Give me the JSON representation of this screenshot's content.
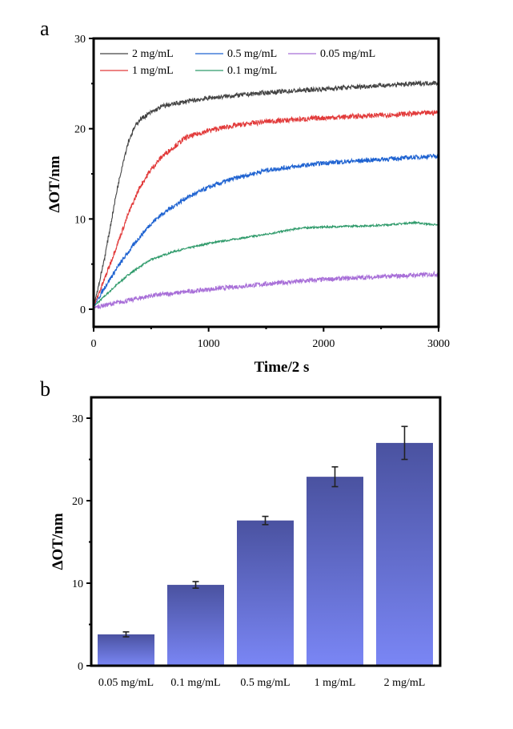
{
  "chart_data": [
    {
      "panel_label": "a",
      "type": "line",
      "xlabel": "Time/2 s",
      "ylabel": "ΔOT/nm",
      "xlim": [
        0,
        3000
      ],
      "ylim": [
        -2,
        30
      ],
      "xticks": [
        "0",
        "1000",
        "2000",
        "3000"
      ],
      "yticks": [
        "0",
        "10",
        "20",
        "30"
      ],
      "legend_position": "top-left",
      "series": [
        {
          "name": "2 mg/mL",
          "color": "#444444",
          "x": [
            0,
            50,
            100,
            150,
            200,
            250,
            300,
            350,
            400,
            500,
            600,
            800,
            1000,
            1500,
            2000,
            2500,
            3000
          ],
          "y": [
            0.3,
            3,
            6,
            9.5,
            13,
            16,
            18.5,
            20,
            21,
            21.8,
            22.5,
            23,
            23.4,
            24,
            24.4,
            24.8,
            25.1
          ]
        },
        {
          "name": "0.5 mg/mL",
          "color": "#1f63d1",
          "x": [
            0,
            100,
            200,
            300,
            400,
            500,
            600,
            800,
            1000,
            1200,
            1500,
            2000,
            2500,
            3000
          ],
          "y": [
            0.3,
            2.5,
            4.5,
            6.3,
            8,
            9.5,
            10.6,
            12.3,
            13.5,
            14.4,
            15.4,
            16.2,
            16.6,
            17.0
          ]
        },
        {
          "name": "0.05 mg/mL",
          "color": "#a86fd8",
          "x": [
            0,
            200,
            500,
            1000,
            1500,
            2000,
            2500,
            3000
          ],
          "y": [
            0.2,
            0.7,
            1.5,
            2.2,
            2.8,
            3.3,
            3.6,
            3.9
          ]
        },
        {
          "name": "1 mg/mL",
          "color": "#e23b3b",
          "x": [
            0,
            100,
            200,
            300,
            400,
            500,
            600,
            700,
            800,
            1000,
            1200,
            1500,
            2000,
            2500,
            3000
          ],
          "y": [
            0.3,
            3.5,
            7,
            10.5,
            13.5,
            15.5,
            17,
            18,
            19,
            19.8,
            20.3,
            20.8,
            21.2,
            21.5,
            21.8
          ]
        },
        {
          "name": "0.1 mg/mL",
          "color": "#2e9a6a",
          "x": [
            0,
            100,
            200,
            300,
            400,
            500,
            700,
            1000,
            1500,
            1800,
            2000,
            2500,
            2800,
            3000
          ],
          "y": [
            0.3,
            1.5,
            2.7,
            3.8,
            4.7,
            5.5,
            6.4,
            7.3,
            8.3,
            9,
            9.1,
            9.3,
            9.6,
            9.3
          ]
        }
      ]
    },
    {
      "panel_label": "b",
      "type": "bar",
      "xlabel": "",
      "ylabel": "ΔOT/nm",
      "ylim": [
        0,
        32.5
      ],
      "yticks": [
        "0",
        "10",
        "20",
        "30"
      ],
      "categories": [
        "0.05 mg/mL",
        "0.1 mg/mL",
        "0.5 mg/mL",
        "1 mg/mL",
        "2 mg/mL"
      ],
      "values": [
        3.8,
        9.8,
        17.6,
        22.9,
        27.0
      ],
      "errors": [
        0.3,
        0.4,
        0.5,
        1.2,
        2.0
      ],
      "bar_color_top": "#4a52a0",
      "bar_color_bottom": "#7a86f5"
    }
  ]
}
